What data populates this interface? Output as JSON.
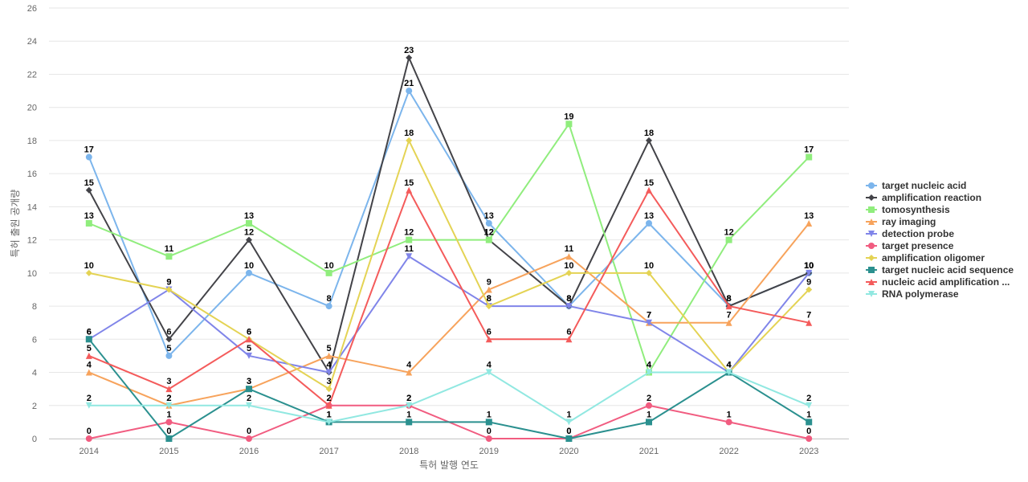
{
  "chart_data": {
    "type": "line",
    "xlabel": "특허 발행 연도",
    "ylabel": "특허 출원 공개량",
    "ylim": [
      0,
      26
    ],
    "yticks": [
      0,
      2,
      4,
      6,
      8,
      10,
      12,
      14,
      16,
      18,
      20,
      22,
      24,
      26
    ],
    "grid": true,
    "legend_position": "right",
    "categories": [
      "2014",
      "2015",
      "2016",
      "2017",
      "2018",
      "2019",
      "2020",
      "2021",
      "2022",
      "2023"
    ],
    "series": [
      {
        "name": "target nucleic acid",
        "color": "#7cb5ec",
        "marker": "circle",
        "values": [
          17,
          5,
          10,
          8,
          21,
          13,
          8,
          13,
          8,
          10
        ]
      },
      {
        "name": "amplification reaction",
        "color": "#434348",
        "marker": "diamond",
        "values": [
          15,
          6,
          12,
          4,
          23,
          12,
          8,
          18,
          8,
          10
        ]
      },
      {
        "name": "tomosynthesis",
        "color": "#90ed7d",
        "marker": "square",
        "values": [
          13,
          11,
          13,
          10,
          12,
          12,
          19,
          4,
          12,
          17
        ]
      },
      {
        "name": "ray imaging",
        "color": "#f7a35c",
        "marker": "triangle",
        "values": [
          4,
          2,
          3,
          5,
          4,
          9,
          11,
          7,
          7,
          13
        ]
      },
      {
        "name": "detection probe",
        "color": "#8085e9",
        "marker": "triangle-down",
        "values": [
          6,
          9,
          5,
          4,
          11,
          8,
          8,
          7,
          4,
          10
        ]
      },
      {
        "name": "target presence",
        "color": "#f15c80",
        "marker": "circle",
        "values": [
          0,
          1,
          0,
          2,
          2,
          0,
          0,
          2,
          1,
          0
        ]
      },
      {
        "name": "amplification oligomer",
        "color": "#e4d354",
        "marker": "diamond",
        "values": [
          10,
          9,
          6,
          3,
          18,
          8,
          10,
          10,
          4,
          9
        ]
      },
      {
        "name": "target nucleic acid sequence",
        "color": "#2b908f",
        "marker": "square",
        "values": [
          6,
          0,
          3,
          1,
          1,
          1,
          0,
          1,
          4,
          1
        ]
      },
      {
        "name": "nucleic acid amplification ...",
        "color": "#f45b5b",
        "marker": "triangle",
        "values": [
          5,
          3,
          6,
          2,
          15,
          6,
          6,
          15,
          8,
          7
        ]
      },
      {
        "name": "RNA polymerase",
        "color": "#91e8e1",
        "marker": "triangle-down",
        "values": [
          2,
          2,
          2,
          1,
          2,
          4,
          1,
          4,
          4,
          2
        ]
      }
    ]
  }
}
